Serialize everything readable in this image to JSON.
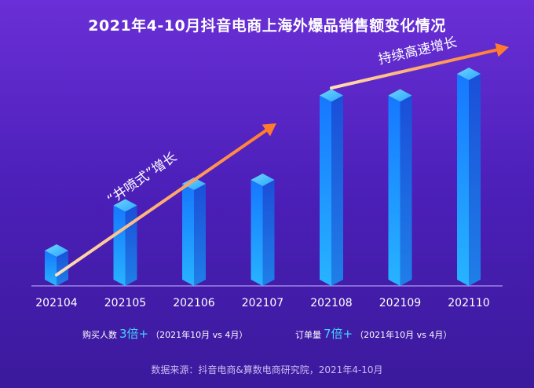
{
  "title": "2021年4-10月抖音电商上海外爆品销售额变化情况",
  "chart_data": {
    "type": "bar",
    "title": "2021年4-10月抖音电商上海外爆品销售额变化情况",
    "categories": [
      "202104",
      "202105",
      "202106",
      "202107",
      "202108",
      "202109",
      "202110"
    ],
    "values": [
      18,
      41,
      52,
      54,
      97,
      97,
      108
    ],
    "ylim": [
      0,
      120
    ],
    "grid": false,
    "legend": "none",
    "annotations": [
      {
        "text": "“井喷式”增长",
        "from": "202104",
        "to": "202107"
      },
      {
        "text": "持续高速增长",
        "from": "202108",
        "to": "202110"
      }
    ],
    "colors": {
      "bar_front": "#1a8dff",
      "bar_side": "#1d5fe6",
      "bar_top": "#4fc3ff",
      "arrow": "#ff8a3d"
    }
  },
  "stats": [
    {
      "label": "购买人数",
      "value": "3倍+",
      "note": "（2021年10月 vs 4月）"
    },
    {
      "label": "订单量",
      "value": "7倍+",
      "note": "（2021年10月 vs 4月）"
    }
  ],
  "source": "数据来源：抖音电商&算数电商研究院，2021年4-10月"
}
